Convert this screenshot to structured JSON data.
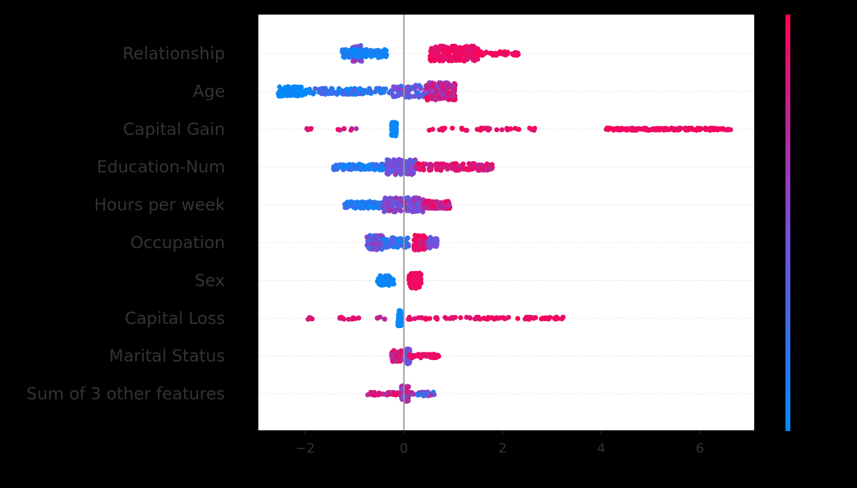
{
  "chart_data": {
    "type": "scatter",
    "title": "",
    "xlabel": "",
    "ylabel": "",
    "xlim": [
      -2.95,
      7.1
    ],
    "xticks": [
      -2,
      0,
      2,
      4,
      6
    ],
    "xtick_labels": [
      "−2",
      "0",
      "2",
      "4",
      "6"
    ],
    "features": [
      "Relationship",
      "Age",
      "Capital Gain",
      "Education-Num",
      "Hours per week",
      "Occupation",
      "Sex",
      "Capital Loss",
      "Marital Status",
      "Sum of 3 other features"
    ],
    "colorbar": {
      "low_color": "#008bfb",
      "mid_color": "#7b4bd8",
      "high_color": "#ff0052"
    },
    "grid": false,
    "zero_line": true,
    "point_groups": [
      [
        {
          "x0": -1.05,
          "x1": -0.85,
          "n": 45,
          "h": 0.42,
          "c0": 0.3,
          "c1": 0.7
        },
        {
          "x0": -1.25,
          "x1": -0.35,
          "n": 120,
          "h": 0.22,
          "c0": 0.0,
          "c1": 0.15
        },
        {
          "x0": 0.5,
          "x1": 1.5,
          "n": 170,
          "h": 0.4,
          "c0": 0.85,
          "c1": 1.0
        },
        {
          "x0": 1.5,
          "x1": 2.35,
          "n": 45,
          "h": 0.1,
          "c0": 0.9,
          "c1": 1.0
        }
      ],
      [
        {
          "x0": -2.55,
          "x1": -2.05,
          "n": 90,
          "h": 0.25,
          "c0": 0.0,
          "c1": 0.05
        },
        {
          "x0": -2.05,
          "x1": -0.3,
          "n": 110,
          "h": 0.16,
          "c0": 0.0,
          "c1": 0.35
        },
        {
          "x0": -0.3,
          "x1": 0.45,
          "n": 70,
          "h": 0.32,
          "c0": 0.2,
          "c1": 0.6
        },
        {
          "x0": 0.45,
          "x1": 1.05,
          "n": 130,
          "h": 0.46,
          "c0": 0.5,
          "c1": 1.0
        }
      ],
      [
        {
          "x0": -2.0,
          "x1": -1.85,
          "n": 5,
          "h": 0.06,
          "c0": 0.8,
          "c1": 1.0
        },
        {
          "x0": -1.35,
          "x1": -0.95,
          "n": 8,
          "h": 0.06,
          "c0": 0.6,
          "c1": 1.0
        },
        {
          "x0": -0.25,
          "x1": -0.15,
          "n": 90,
          "h": 0.36,
          "c0": 0.0,
          "c1": 0.05
        },
        {
          "x0": 0.45,
          "x1": 2.75,
          "n": 35,
          "h": 0.06,
          "c0": 0.85,
          "c1": 1.0
        },
        {
          "x0": 4.1,
          "x1": 6.65,
          "n": 150,
          "h": 0.06,
          "c0": 0.9,
          "c1": 1.0
        }
      ],
      [
        {
          "x0": -1.45,
          "x1": -0.4,
          "n": 110,
          "h": 0.16,
          "c0": 0.0,
          "c1": 0.3
        },
        {
          "x0": -0.35,
          "x1": 0.25,
          "n": 140,
          "h": 0.4,
          "c0": 0.3,
          "c1": 0.6
        },
        {
          "x0": 0.25,
          "x1": 1.8,
          "n": 140,
          "h": 0.18,
          "c0": 0.75,
          "c1": 1.0
        }
      ],
      [
        {
          "x0": -1.2,
          "x1": -0.4,
          "n": 100,
          "h": 0.18,
          "c0": 0.0,
          "c1": 0.25
        },
        {
          "x0": -0.4,
          "x1": 0.4,
          "n": 150,
          "h": 0.38,
          "c0": 0.35,
          "c1": 0.7
        },
        {
          "x0": 0.4,
          "x1": 0.95,
          "n": 90,
          "h": 0.2,
          "c0": 0.7,
          "c1": 1.0
        }
      ],
      [
        {
          "x0": -0.75,
          "x1": -0.4,
          "n": 80,
          "h": 0.38,
          "c0": 0.2,
          "c1": 0.7
        },
        {
          "x0": -0.4,
          "x1": 0.1,
          "n": 70,
          "h": 0.26,
          "c0": 0.0,
          "c1": 0.4
        },
        {
          "x0": 0.2,
          "x1": 0.45,
          "n": 90,
          "h": 0.4,
          "c0": 0.8,
          "c1": 1.0
        },
        {
          "x0": 0.5,
          "x1": 0.7,
          "n": 40,
          "h": 0.28,
          "c0": 0.35,
          "c1": 0.55
        }
      ],
      [
        {
          "x0": -0.55,
          "x1": -0.2,
          "n": 60,
          "h": 0.26,
          "c0": 0.0,
          "c1": 0.1
        },
        {
          "x0": 0.1,
          "x1": 0.35,
          "n": 70,
          "h": 0.42,
          "c0": 0.9,
          "c1": 1.0
        }
      ],
      [
        {
          "x0": -1.95,
          "x1": -1.85,
          "n": 5,
          "h": 0.06,
          "c0": 0.8,
          "c1": 1.0
        },
        {
          "x0": -1.3,
          "x1": -0.9,
          "n": 12,
          "h": 0.06,
          "c0": 0.8,
          "c1": 1.0
        },
        {
          "x0": -0.55,
          "x1": -0.35,
          "n": 6,
          "h": 0.06,
          "c0": 0.7,
          "c1": 1.0
        },
        {
          "x0": -0.12,
          "x1": -0.05,
          "n": 90,
          "h": 0.4,
          "c0": 0.0,
          "c1": 0.05
        },
        {
          "x0": 0.05,
          "x1": 2.2,
          "n": 50,
          "h": 0.06,
          "c0": 0.85,
          "c1": 1.0
        },
        {
          "x0": 2.3,
          "x1": 3.25,
          "n": 30,
          "h": 0.06,
          "c0": 0.9,
          "c1": 1.0
        }
      ],
      [
        {
          "x0": -0.25,
          "x1": -0.05,
          "n": 50,
          "h": 0.3,
          "c0": 0.7,
          "c1": 1.0
        },
        {
          "x0": 0.05,
          "x1": 0.12,
          "n": 60,
          "h": 0.42,
          "c0": 0.3,
          "c1": 0.5
        },
        {
          "x0": 0.1,
          "x1": 0.75,
          "n": 50,
          "h": 0.1,
          "c0": 0.85,
          "c1": 1.0
        }
      ],
      [
        {
          "x0": -0.75,
          "x1": -0.05,
          "n": 40,
          "h": 0.08,
          "c0": 0.7,
          "c1": 1.0
        },
        {
          "x0": -0.05,
          "x1": 0.1,
          "n": 80,
          "h": 0.42,
          "c0": 0.4,
          "c1": 0.9
        },
        {
          "x0": 0.1,
          "x1": 0.65,
          "n": 40,
          "h": 0.1,
          "c0": 0.0,
          "c1": 0.9
        }
      ]
    ]
  }
}
